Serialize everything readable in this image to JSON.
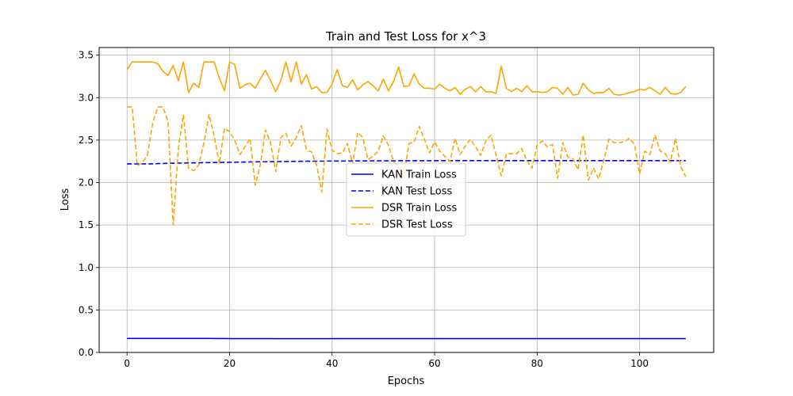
{
  "chart_data": {
    "type": "line",
    "title": "Train and Test Loss for x^3",
    "xlabel": "Epochs",
    "ylabel": "Loss",
    "xlim": [
      -5.45,
      114.45
    ],
    "ylim": [
      0,
      3.59
    ],
    "xticks": [
      0,
      20,
      40,
      60,
      80,
      100
    ],
    "yticks": [
      0.0,
      0.5,
      1.0,
      1.5,
      2.0,
      2.5,
      3.0,
      3.5
    ],
    "xtick_labels": [
      "0",
      "20",
      "40",
      "60",
      "80",
      "100"
    ],
    "ytick_labels": [
      "0.0",
      "0.5",
      "1.0",
      "1.5",
      "2.0",
      "2.5",
      "3.0",
      "3.5"
    ],
    "grid": true,
    "legend_position": "center",
    "series": [
      {
        "name": "KAN Train Loss",
        "color": "#0000ff",
        "style": "solid",
        "x_start": 0,
        "x_step": 1,
        "values": [
          0.165,
          0.165,
          0.165,
          0.165,
          0.165,
          0.165,
          0.165,
          0.165,
          0.165,
          0.165,
          0.165,
          0.165,
          0.165,
          0.165,
          0.165,
          0.165,
          0.165,
          0.164,
          0.164,
          0.164,
          0.163,
          0.163,
          0.163,
          0.163,
          0.163,
          0.163,
          0.163,
          0.163,
          0.163,
          0.162,
          0.162,
          0.162,
          0.162,
          0.162,
          0.162,
          0.162,
          0.162,
          0.162,
          0.162,
          0.162,
          0.163,
          0.163,
          0.163,
          0.163,
          0.163,
          0.163,
          0.163,
          0.163,
          0.163,
          0.163,
          0.163,
          0.163,
          0.163,
          0.163,
          0.163,
          0.163,
          0.163,
          0.163,
          0.163,
          0.163,
          0.163,
          0.163,
          0.163,
          0.163,
          0.163,
          0.163,
          0.163,
          0.163,
          0.163,
          0.163,
          0.163,
          0.163,
          0.163,
          0.163,
          0.163,
          0.163,
          0.163,
          0.163,
          0.163,
          0.163,
          0.163,
          0.163,
          0.163,
          0.163,
          0.163,
          0.163,
          0.163,
          0.163,
          0.163,
          0.163,
          0.163,
          0.163,
          0.163,
          0.163,
          0.163,
          0.163,
          0.163,
          0.163,
          0.163,
          0.163,
          0.163,
          0.163,
          0.163,
          0.163,
          0.163,
          0.163,
          0.163,
          0.163,
          0.163,
          0.163
        ]
      },
      {
        "name": "KAN Test Loss",
        "color": "#0000ff",
        "style": "dashed",
        "x_start": 0,
        "x_step": 1,
        "values": [
          2.22,
          2.22,
          2.22,
          2.22,
          2.22,
          2.22,
          2.223,
          2.225,
          2.227,
          2.228,
          2.229,
          2.23,
          2.231,
          2.232,
          2.233,
          2.234,
          2.235,
          2.236,
          2.237,
          2.238,
          2.239,
          2.24,
          2.241,
          2.242,
          2.243,
          2.244,
          2.245,
          2.245,
          2.246,
          2.247,
          2.248,
          2.248,
          2.249,
          2.25,
          2.25,
          2.251,
          2.251,
          2.252,
          2.252,
          2.253,
          2.253,
          2.254,
          2.254,
          2.254,
          2.255,
          2.255,
          2.255,
          2.255,
          2.256,
          2.256,
          2.256,
          2.256,
          2.256,
          2.257,
          2.257,
          2.257,
          2.257,
          2.257,
          2.257,
          2.257,
          2.258,
          2.258,
          2.258,
          2.258,
          2.258,
          2.258,
          2.258,
          2.258,
          2.258,
          2.258,
          2.258,
          2.258,
          2.258,
          2.258,
          2.258,
          2.258,
          2.258,
          2.258,
          2.258,
          2.258,
          2.258,
          2.258,
          2.258,
          2.258,
          2.258,
          2.258,
          2.258,
          2.258,
          2.258,
          2.258,
          2.258,
          2.258,
          2.258,
          2.258,
          2.258,
          2.258,
          2.258,
          2.258,
          2.258,
          2.258,
          2.258,
          2.258,
          2.258,
          2.258,
          2.258,
          2.258,
          2.258,
          2.258,
          2.258,
          2.258
        ]
      },
      {
        "name": "DSR Train Loss",
        "color": "#ffa500",
        "style": "solid",
        "x_start": 0,
        "x_step": 1,
        "values": [
          3.33,
          3.42,
          3.42,
          3.42,
          3.42,
          3.42,
          3.4,
          3.31,
          3.26,
          3.38,
          3.2,
          3.42,
          3.06,
          3.17,
          3.12,
          3.42,
          3.42,
          3.42,
          3.23,
          3.08,
          3.42,
          3.39,
          3.11,
          3.15,
          3.17,
          3.11,
          3.22,
          3.32,
          3.2,
          3.07,
          3.2,
          3.42,
          3.19,
          3.42,
          3.16,
          3.27,
          3.1,
          3.13,
          3.06,
          3.06,
          3.16,
          3.33,
          3.14,
          3.12,
          3.21,
          3.09,
          3.15,
          3.19,
          3.14,
          3.08,
          3.22,
          3.08,
          3.19,
          3.36,
          3.13,
          3.14,
          3.28,
          3.16,
          3.11,
          3.11,
          3.1,
          3.16,
          3.11,
          3.08,
          3.12,
          3.04,
          3.1,
          3.13,
          3.07,
          3.13,
          3.07,
          3.07,
          3.05,
          3.37,
          3.11,
          3.07,
          3.11,
          3.07,
          3.14,
          3.07,
          3.07,
          3.06,
          3.07,
          3.12,
          3.11,
          3.04,
          3.12,
          3.03,
          3.04,
          3.17,
          3.09,
          3.05,
          3.06,
          3.06,
          3.11,
          3.04,
          3.03,
          3.04,
          3.06,
          3.07,
          3.1,
          3.09,
          3.12,
          3.08,
          3.04,
          3.12,
          3.05,
          3.04,
          3.06,
          3.13
        ]
      },
      {
        "name": "DSR Test Loss",
        "color": "#ffa500",
        "style": "dashed",
        "x_start": 0,
        "x_step": 1,
        "values": [
          2.89,
          2.89,
          2.2,
          2.23,
          2.33,
          2.7,
          2.89,
          2.89,
          2.72,
          1.5,
          2.4,
          2.8,
          2.17,
          2.14,
          2.21,
          2.47,
          2.8,
          2.55,
          2.22,
          2.64,
          2.6,
          2.5,
          2.33,
          2.42,
          2.52,
          1.97,
          2.21,
          2.62,
          2.47,
          2.13,
          2.53,
          2.58,
          2.43,
          2.53,
          2.67,
          2.38,
          2.36,
          2.2,
          1.89,
          2.63,
          2.38,
          2.34,
          2.35,
          2.46,
          2.22,
          2.59,
          2.53,
          2.27,
          2.31,
          2.37,
          2.55,
          2.44,
          2.25,
          2.18,
          2.07,
          2.46,
          2.48,
          2.66,
          2.51,
          2.35,
          2.48,
          2.37,
          2.31,
          2.25,
          2.52,
          2.33,
          2.43,
          2.51,
          2.42,
          2.32,
          2.49,
          2.56,
          2.32,
          2.08,
          2.34,
          2.34,
          2.34,
          2.4,
          2.26,
          2.17,
          2.44,
          2.49,
          2.42,
          2.45,
          2.05,
          2.47,
          2.3,
          2.28,
          2.15,
          2.56,
          2.03,
          2.17,
          2.04,
          2.26,
          2.51,
          2.47,
          2.47,
          2.48,
          2.52,
          2.45,
          2.1,
          2.37,
          2.33,
          2.56,
          2.37,
          2.34,
          2.24,
          2.52,
          2.19,
          2.07
        ]
      }
    ]
  }
}
